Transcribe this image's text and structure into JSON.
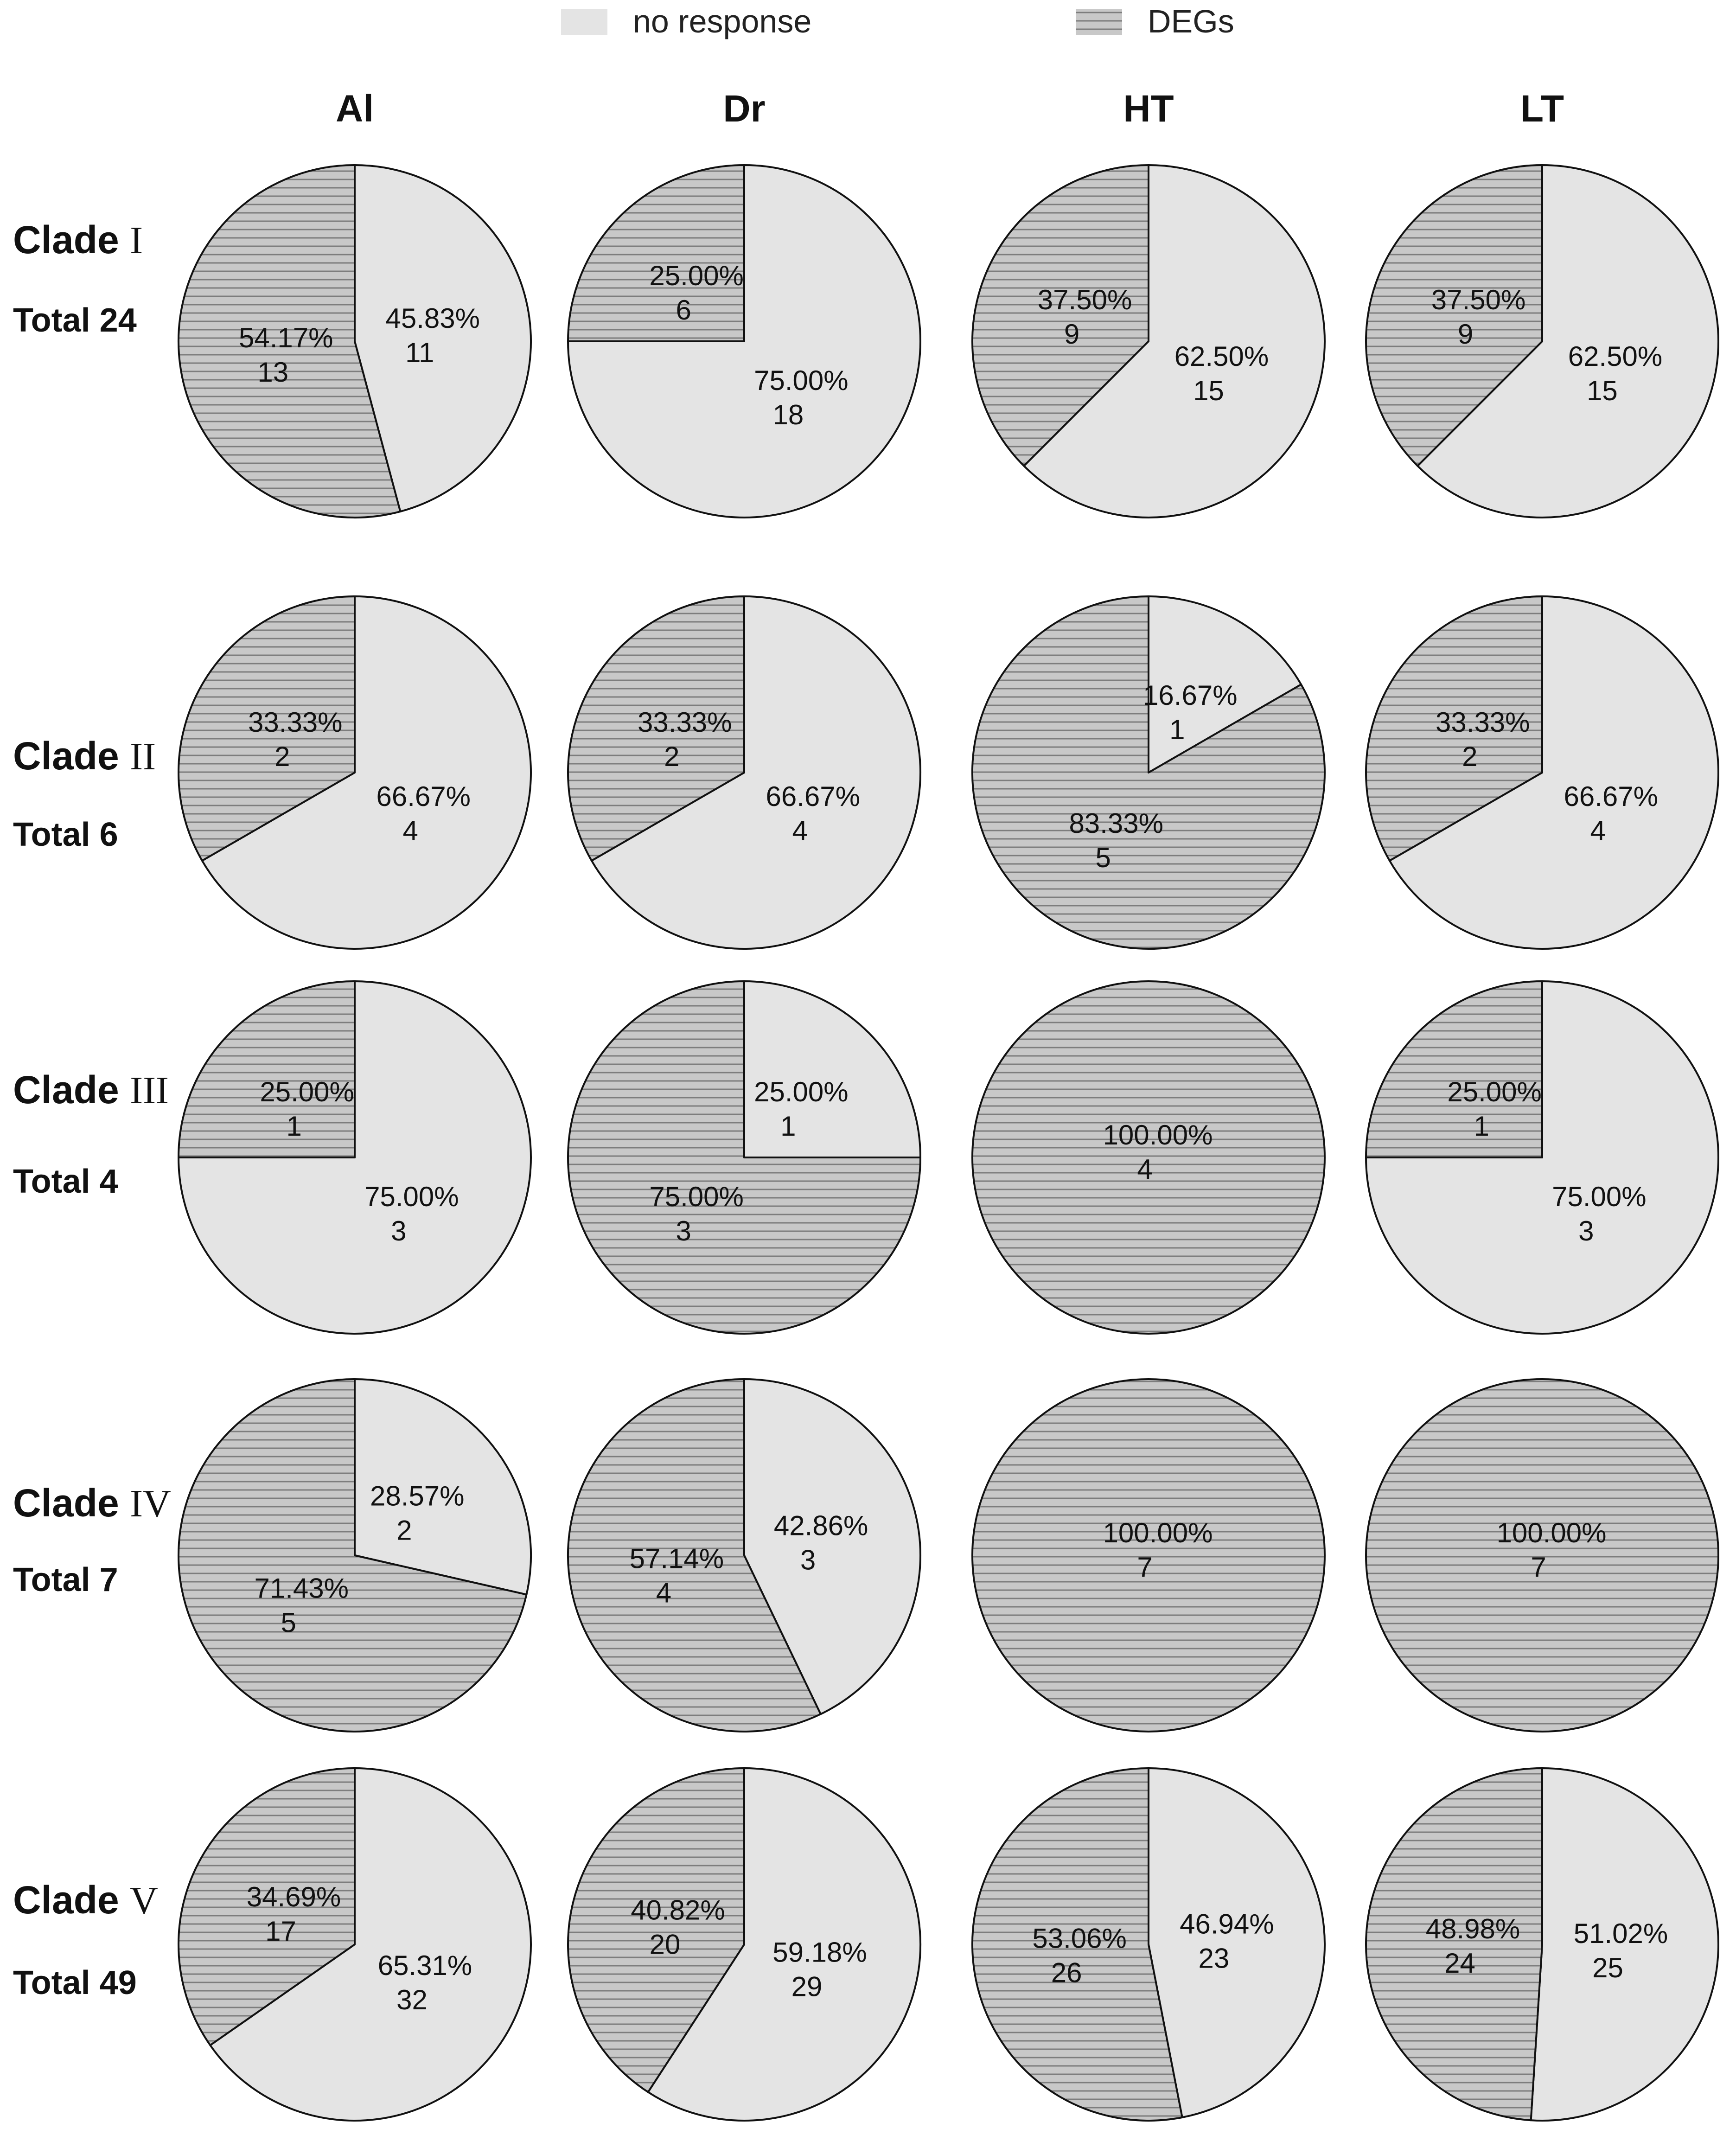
{
  "legend": {
    "items": [
      {
        "label": "no response",
        "kind": "plain"
      },
      {
        "label": "DEGs",
        "kind": "hatched"
      }
    ]
  },
  "colors": {
    "no_response_fill": "#e4e4e4",
    "degs_fill": "#c8c8c8",
    "hatch_line": "#7d7d7d",
    "outline": "#111111"
  },
  "chart_data": {
    "type": "pie",
    "title": "",
    "series_names": [
      "no response",
      "DEGs"
    ],
    "columns": [
      "Al",
      "Dr",
      "HT",
      "LT"
    ],
    "rows": [
      {
        "clade": "Clade",
        "numeral": "I",
        "total_label": "Total 24",
        "pies": [
          {
            "column": "Al",
            "no_response": {
              "pct": "45.83%",
              "count": 11
            },
            "degs": {
              "pct": "54.17%",
              "count": 13
            }
          },
          {
            "column": "Dr",
            "no_response": {
              "pct": "75.00%",
              "count": 18
            },
            "degs": {
              "pct": "25.00%",
              "count": 6
            }
          },
          {
            "column": "HT",
            "no_response": {
              "pct": "62.50%",
              "count": 15
            },
            "degs": {
              "pct": "37.50%",
              "count": 9
            }
          },
          {
            "column": "LT",
            "no_response": {
              "pct": "62.50%",
              "count": 15
            },
            "degs": {
              "pct": "37.50%",
              "count": 9
            }
          }
        ]
      },
      {
        "clade": "Clade",
        "numeral": "II",
        "total_label": "Total 6",
        "pies": [
          {
            "column": "Al",
            "no_response": {
              "pct": "66.67%",
              "count": 4
            },
            "degs": {
              "pct": "33.33%",
              "count": 2
            }
          },
          {
            "column": "Dr",
            "no_response": {
              "pct": "66.67%",
              "count": 4
            },
            "degs": {
              "pct": "33.33%",
              "count": 2
            }
          },
          {
            "column": "HT",
            "no_response": {
              "pct": "16.67%",
              "count": 1
            },
            "degs": {
              "pct": "83.33%",
              "count": 5
            }
          },
          {
            "column": "LT",
            "no_response": {
              "pct": "66.67%",
              "count": 4
            },
            "degs": {
              "pct": "33.33%",
              "count": 2
            }
          }
        ]
      },
      {
        "clade": "Clade",
        "numeral": "III",
        "total_label": "Total 4",
        "pies": [
          {
            "column": "Al",
            "no_response": {
              "pct": "75.00%",
              "count": 3
            },
            "degs": {
              "pct": "25.00%",
              "count": 1
            }
          },
          {
            "column": "Dr",
            "no_response": {
              "pct": "25.00%",
              "count": 1
            },
            "degs": {
              "pct": "75.00%",
              "count": 3
            }
          },
          {
            "column": "HT",
            "no_response": null,
            "degs": {
              "pct": "100.00%",
              "count": 4
            }
          },
          {
            "column": "LT",
            "no_response": {
              "pct": "75.00%",
              "count": 3
            },
            "degs": {
              "pct": "25.00%",
              "count": 1
            }
          }
        ]
      },
      {
        "clade": "Clade",
        "numeral": "IV",
        "total_label": "Total 7",
        "pies": [
          {
            "column": "Al",
            "no_response": {
              "pct": "28.57%",
              "count": 2
            },
            "degs": {
              "pct": "71.43%",
              "count": 5
            }
          },
          {
            "column": "Dr",
            "no_response": {
              "pct": "42.86%",
              "count": 3
            },
            "degs": {
              "pct": "57.14%",
              "count": 4
            }
          },
          {
            "column": "HT",
            "no_response": null,
            "degs": {
              "pct": "100.00%",
              "count": 7
            }
          },
          {
            "column": "LT",
            "no_response": null,
            "degs": {
              "pct": "100.00%",
              "count": 7
            }
          }
        ]
      },
      {
        "clade": "Clade",
        "numeral": "V",
        "total_label": "Total 49",
        "pies": [
          {
            "column": "Al",
            "no_response": {
              "pct": "65.31%",
              "count": 32
            },
            "degs": {
              "pct": "34.69%",
              "count": 17
            }
          },
          {
            "column": "Dr",
            "no_response": {
              "pct": "59.18%",
              "count": 29
            },
            "degs": {
              "pct": "40.82%",
              "count": 20
            }
          },
          {
            "column": "HT",
            "no_response": {
              "pct": "46.94%",
              "count": 23
            },
            "degs": {
              "pct": "53.06%",
              "count": 26
            }
          },
          {
            "column": "LT",
            "no_response": {
              "pct": "51.02%",
              "count": 25
            },
            "degs": {
              "pct": "48.98%",
              "count": 24
            }
          }
        ]
      }
    ]
  }
}
